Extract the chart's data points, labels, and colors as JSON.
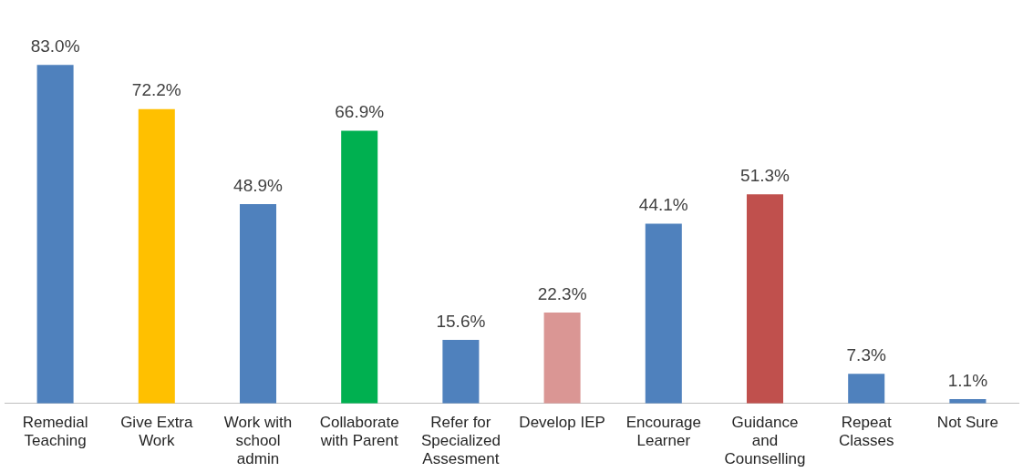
{
  "chart_data": {
    "type": "bar",
    "categories": [
      "Remedial Teaching",
      "Give Extra Work",
      "Work with school admin",
      "Collaborate with Parent",
      "Refer for Specialized Assesment",
      "Develop IEP",
      "Encourage Learner",
      "Guidance and Counselling",
      "Repeat Classes",
      "Not Sure"
    ],
    "values": [
      83.0,
      72.2,
      48.9,
      66.9,
      15.6,
      22.3,
      44.1,
      51.3,
      7.3,
      1.1
    ],
    "colors": [
      "#4f81bd",
      "#ffc000",
      "#4f81bd",
      "#00b050",
      "#4f81bd",
      "#da9694",
      "#4f81bd",
      "#c0504d",
      "#4f81bd",
      "#4f81bd"
    ],
    "value_labels": [
      "83.0%",
      "72.2%",
      "48.9%",
      "66.9%",
      "15.6%",
      "22.3%",
      "44.1%",
      "51.3%",
      "7.3%",
      "1.1%"
    ],
    "grid": false,
    "legend": false
  }
}
